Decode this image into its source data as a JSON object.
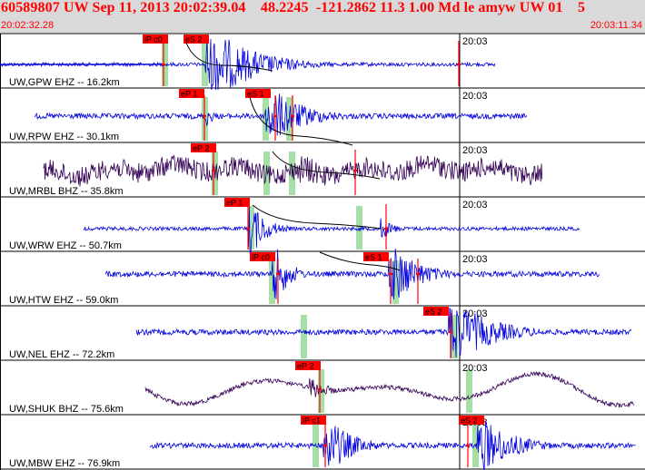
{
  "header": {
    "title": "60589807 UW Sep 11, 2013 20:02:39.04    48.2245  -121.2862 11.3 1.00 Md le amyw UW 01    5",
    "start_time": "20:02:32.28",
    "end_time": "20:03:11.34"
  },
  "colors": {
    "header_bg": "#d9d9d9",
    "header_text": "#ff0000",
    "trace_blue": "#0000dd",
    "trace_dark": "#330055",
    "pick_red": "#ff0000",
    "theory_green": "#a6e0a6"
  },
  "minute_label": "20:03",
  "channels": [
    {
      "name": "gpw",
      "label": "UW,GPW EHZ -- 16.2km",
      "trace": "blue",
      "p_pick": "iP c0",
      "s_pick": "eS 2"
    },
    {
      "name": "rpw",
      "label": "UW,RPW EHZ -- 30.1km",
      "trace": "blue",
      "p_pick": "eP 1",
      "s_pick": "eS 1"
    },
    {
      "name": "mrbl",
      "label": "UW,MRBL BHZ -- 35.8km",
      "trace": "dark",
      "p_pick": "eP 2",
      "s_pick": ""
    },
    {
      "name": "wrw",
      "label": "UW,WRW EHZ -- 50.7km",
      "trace": "blue",
      "p_pick": "eP 1",
      "s_pick": ""
    },
    {
      "name": "htw",
      "label": "UW,HTW EHZ -- 59.0km",
      "trace": "blue",
      "p_pick": "iP c0",
      "s_pick": "eS 1"
    },
    {
      "name": "nel",
      "label": "UW,NEL EHZ -- 72.2km",
      "trace": "blue",
      "p_pick": "",
      "s_pick": "eS 2"
    },
    {
      "name": "shuk",
      "label": "UW,SHUK BHZ -- 75.6km",
      "trace": "dark",
      "p_pick": "eP 2",
      "s_pick": ""
    },
    {
      "name": "mbw",
      "label": "UW,MBW EHZ -- 76.9km",
      "trace": "blue",
      "p_pick": "iP c1",
      "s_pick": "eS 2"
    }
  ]
}
